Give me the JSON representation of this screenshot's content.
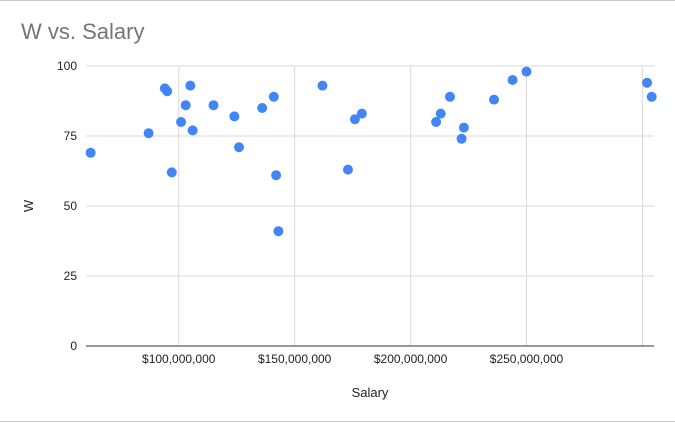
{
  "chart_data": {
    "type": "scatter",
    "title": "W vs. Salary",
    "xlabel": "Salary",
    "ylabel": "W",
    "xlim": [
      60000000,
      305000000
    ],
    "ylim": [
      0,
      100
    ],
    "x_ticks": [
      100000000,
      150000000,
      200000000,
      250000000
    ],
    "x_tick_labels": [
      "$100,000,000",
      "$150,000,000",
      "$200,000,000",
      "$250,000,000"
    ],
    "y_ticks": [
      0,
      25,
      50,
      75,
      100
    ],
    "y_tick_labels": [
      "0",
      "25",
      "50",
      "75",
      "100"
    ],
    "grid": true,
    "legend": "none",
    "point_color": "#4285f4",
    "x": [
      62000000,
      87000000,
      94000000,
      95000000,
      97000000,
      101000000,
      103000000,
      105000000,
      106000000,
      115000000,
      124000000,
      126000000,
      136000000,
      141000000,
      142000000,
      143000000,
      162000000,
      173000000,
      176000000,
      179000000,
      211000000,
      213000000,
      217000000,
      222000000,
      223000000,
      236000000,
      244000000,
      250000000,
      302000000,
      304000000
    ],
    "y": [
      69,
      76,
      92,
      91,
      62,
      80,
      86,
      93,
      77,
      86,
      82,
      71,
      85,
      89,
      61,
      41,
      93,
      63,
      81,
      83,
      80,
      83,
      89,
      74,
      78,
      88,
      95,
      98,
      94,
      89
    ]
  }
}
